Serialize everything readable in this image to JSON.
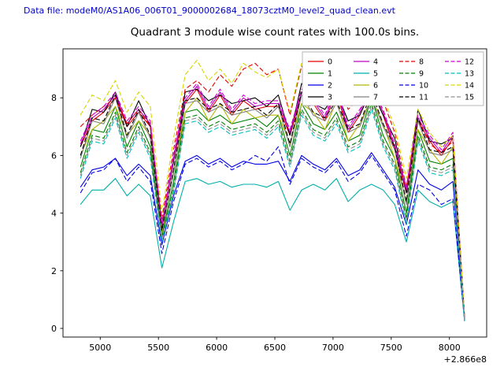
{
  "header": {
    "data_file_label": "Data file: modeM0/AS1A06_006T01_9000002684_18073cztM0_level2_quad_clean.evt",
    "data_file_color": "#0000cc"
  },
  "chart_data": {
    "type": "line",
    "title": "Quadrant 3 module wise count rates with 100.0s bins.",
    "xlabel": "",
    "ylabel": "",
    "x_offset_label": "+2.866e8",
    "x_ticks": [
      5000,
      5500,
      6000,
      6500,
      7000,
      7500,
      8000
    ],
    "y_ticks": [
      0,
      2,
      4,
      6,
      8
    ],
    "xlim": [
      4680,
      8320
    ],
    "ylim": [
      -0.3,
      9.7
    ],
    "grid": false,
    "legend_position": "upper right",
    "legend_columns": 4,
    "x": [
      4830,
      4930,
      5030,
      5130,
      5230,
      5330,
      5430,
      5530,
      5630,
      5730,
      5830,
      5930,
      6030,
      6130,
      6230,
      6330,
      6430,
      6530,
      6630,
      6730,
      6830,
      6930,
      7030,
      7130,
      7230,
      7330,
      7430,
      7530,
      7630,
      7730,
      7830,
      7930,
      8030,
      8130
    ],
    "series": [
      {
        "name": "0",
        "color": "#e60000",
        "dash": false,
        "values": [
          6.3,
          7.2,
          7.5,
          8.0,
          7.0,
          7.5,
          7.0,
          3.5,
          5.8,
          7.8,
          8.3,
          7.5,
          8.1,
          7.4,
          7.9,
          7.6,
          7.7,
          7.7,
          6.7,
          8.1,
          7.8,
          7.2,
          8.2,
          6.8,
          7.4,
          8.3,
          7.4,
          6.2,
          4.7,
          7.2,
          6.5,
          6.0,
          6.6,
          0.35
        ]
      },
      {
        "name": "1",
        "color": "#008000",
        "dash": false,
        "values": [
          5.6,
          6.9,
          6.8,
          7.7,
          6.3,
          7.2,
          6.3,
          3.2,
          5.1,
          7.5,
          7.6,
          7.2,
          7.4,
          7.1,
          7.2,
          7.3,
          7.0,
          7.4,
          6.0,
          7.8,
          7.1,
          6.9,
          7.5,
          6.5,
          6.7,
          8.0,
          6.7,
          5.9,
          4.0,
          6.9,
          5.8,
          5.7,
          5.9,
          0.3
        ]
      },
      {
        "name": "2",
        "color": "#0000e6",
        "dash": false,
        "values": [
          4.9,
          5.5,
          5.6,
          5.9,
          5.3,
          5.7,
          5.3,
          2.9,
          4.6,
          5.8,
          6.0,
          5.7,
          5.9,
          5.6,
          5.8,
          5.7,
          5.7,
          5.8,
          5.1,
          6.0,
          5.7,
          5.5,
          5.9,
          5.3,
          5.5,
          6.1,
          5.5,
          4.9,
          3.6,
          5.5,
          5.0,
          4.8,
          5.1,
          0.3
        ]
      },
      {
        "name": "3",
        "color": "#000000",
        "dash": false,
        "values": [
          6.3,
          7.6,
          7.5,
          8.2,
          7.0,
          7.9,
          7.0,
          3.6,
          5.8,
          8.2,
          8.3,
          7.9,
          8.1,
          7.8,
          7.9,
          8.0,
          7.7,
          8.1,
          6.7,
          8.5,
          7.8,
          7.6,
          8.2,
          7.2,
          7.4,
          8.3,
          7.4,
          6.6,
          4.7,
          7.6,
          6.5,
          6.4,
          6.6,
          0.4
        ]
      },
      {
        "name": "4",
        "color": "#c000c0",
        "dash": false,
        "values": [
          6.4,
          7.3,
          7.6,
          8.1,
          7.1,
          7.6,
          7.1,
          3.5,
          5.9,
          7.9,
          8.4,
          7.6,
          8.2,
          7.5,
          8.0,
          7.7,
          7.8,
          7.8,
          6.8,
          8.2,
          7.9,
          7.3,
          8.3,
          6.9,
          7.5,
          8.4,
          7.5,
          6.3,
          4.8,
          7.3,
          6.6,
          6.1,
          6.7,
          0.35
        ]
      },
      {
        "name": "5",
        "color": "#00b0a8",
        "dash": false,
        "values": [
          4.3,
          4.8,
          4.8,
          5.2,
          4.6,
          5.0,
          4.6,
          2.1,
          3.7,
          5.1,
          5.2,
          5.0,
          5.1,
          4.9,
          5.0,
          5.0,
          4.9,
          5.1,
          4.1,
          4.8,
          5.0,
          4.8,
          5.2,
          4.4,
          4.8,
          5.0,
          4.8,
          4.3,
          3.0,
          4.8,
          4.4,
          4.2,
          4.4,
          0.25
        ]
      },
      {
        "name": "6",
        "color": "#b8b800",
        "dash": false,
        "values": [
          6.0,
          6.9,
          7.2,
          7.7,
          6.7,
          7.2,
          6.7,
          3.3,
          5.5,
          7.5,
          8.0,
          7.2,
          7.8,
          7.1,
          7.6,
          7.3,
          7.4,
          7.4,
          6.4,
          7.8,
          7.5,
          6.9,
          7.9,
          6.5,
          7.1,
          8.0,
          7.1,
          5.9,
          4.4,
          6.9,
          6.2,
          5.7,
          6.3,
          0.3
        ]
      },
      {
        "name": "7",
        "color": "#808080",
        "dash": false,
        "values": [
          5.9,
          7.2,
          7.1,
          8.0,
          6.6,
          7.5,
          6.6,
          3.4,
          5.4,
          7.8,
          7.9,
          7.5,
          7.7,
          7.4,
          7.5,
          7.6,
          7.3,
          7.7,
          6.3,
          8.1,
          7.4,
          7.2,
          7.8,
          6.8,
          7.0,
          8.0,
          7.0,
          6.2,
          4.3,
          7.2,
          6.1,
          6.0,
          6.2,
          0.3
        ]
      },
      {
        "name": "8",
        "color": "#e60000",
        "dash": true,
        "values": [
          7.0,
          7.4,
          7.7,
          8.0,
          7.1,
          7.6,
          7.0,
          3.8,
          6.2,
          8.3,
          8.6,
          8.2,
          8.8,
          8.4,
          9.0,
          9.2,
          8.8,
          9.0,
          7.4,
          9.1,
          8.6,
          8.2,
          8.7,
          7.6,
          8.0,
          8.9,
          7.9,
          6.8,
          4.9,
          7.3,
          6.4,
          6.1,
          6.5,
          0.4
        ]
      },
      {
        "name": "9",
        "color": "#008000",
        "dash": true,
        "values": [
          5.4,
          6.7,
          6.6,
          7.5,
          6.1,
          7.0,
          6.1,
          3.1,
          4.9,
          7.3,
          7.4,
          7.0,
          7.2,
          6.9,
          7.0,
          7.1,
          6.8,
          7.2,
          5.8,
          7.6,
          6.9,
          6.7,
          7.3,
          6.3,
          6.5,
          7.8,
          6.5,
          5.7,
          3.8,
          6.7,
          5.6,
          5.5,
          5.7,
          0.3
        ]
      },
      {
        "name": "10",
        "color": "#0000e6",
        "dash": true,
        "values": [
          4.7,
          5.4,
          5.5,
          5.9,
          5.1,
          5.6,
          5.1,
          2.6,
          4.4,
          5.7,
          5.9,
          5.6,
          5.8,
          5.5,
          5.7,
          6.0,
          5.8,
          6.3,
          5.0,
          5.9,
          5.6,
          5.4,
          5.8,
          5.1,
          5.4,
          6.0,
          5.4,
          4.8,
          3.2,
          5.0,
          4.8,
          4.3,
          4.5,
          0.3
        ]
      },
      {
        "name": "11",
        "color": "#000000",
        "dash": true,
        "values": [
          6.0,
          7.3,
          7.2,
          8.1,
          6.7,
          7.6,
          6.7,
          3.4,
          5.5,
          7.9,
          8.0,
          7.6,
          7.8,
          7.5,
          7.6,
          7.7,
          7.4,
          7.8,
          6.4,
          8.2,
          7.5,
          7.3,
          7.9,
          6.9,
          7.1,
          8.2,
          7.1,
          6.3,
          4.4,
          7.3,
          6.2,
          6.1,
          6.3,
          0.35
        ]
      },
      {
        "name": "12",
        "color": "#cc00cc",
        "dash": true,
        "values": [
          6.5,
          7.4,
          7.7,
          8.2,
          7.2,
          7.7,
          7.2,
          3.6,
          6.0,
          8.0,
          8.5,
          7.7,
          8.3,
          7.6,
          8.1,
          7.8,
          7.9,
          7.9,
          6.9,
          8.3,
          8.0,
          7.4,
          8.4,
          7.0,
          7.6,
          8.3,
          7.6,
          6.4,
          4.9,
          7.4,
          6.7,
          6.2,
          6.8,
          0.4
        ]
      },
      {
        "name": "13",
        "color": "#00bfbf",
        "dash": true,
        "values": [
          5.2,
          6.5,
          6.4,
          7.3,
          5.9,
          6.8,
          5.9,
          3.0,
          4.7,
          7.1,
          7.2,
          6.8,
          7.0,
          6.7,
          6.8,
          6.9,
          6.6,
          7.0,
          5.6,
          7.4,
          6.7,
          6.5,
          7.1,
          6.1,
          6.3,
          7.6,
          6.3,
          5.5,
          3.6,
          6.5,
          5.4,
          5.3,
          5.5,
          0.25
        ]
      },
      {
        "name": "14",
        "color": "#d6d600",
        "dash": true,
        "values": [
          7.4,
          8.1,
          7.9,
          8.6,
          7.5,
          8.2,
          7.7,
          4.0,
          6.6,
          8.8,
          9.3,
          8.6,
          9.0,
          8.5,
          9.2,
          8.9,
          8.7,
          9.0,
          7.5,
          9.2,
          8.8,
          8.3,
          8.9,
          7.8,
          8.2,
          9.0,
          8.0,
          7.0,
          5.2,
          7.6,
          6.8,
          6.3,
          6.7,
          0.45
        ]
      },
      {
        "name": "15",
        "color": "#909090",
        "dash": true,
        "values": [
          5.3,
          6.6,
          6.5,
          7.4,
          6.0,
          6.9,
          6.0,
          3.1,
          4.8,
          7.2,
          7.3,
          6.9,
          7.1,
          6.8,
          6.9,
          7.0,
          6.7,
          7.1,
          5.7,
          7.5,
          6.8,
          6.6,
          7.2,
          6.2,
          6.4,
          7.7,
          6.4,
          5.6,
          3.7,
          6.6,
          5.5,
          5.4,
          5.6,
          0.3
        ]
      }
    ]
  }
}
